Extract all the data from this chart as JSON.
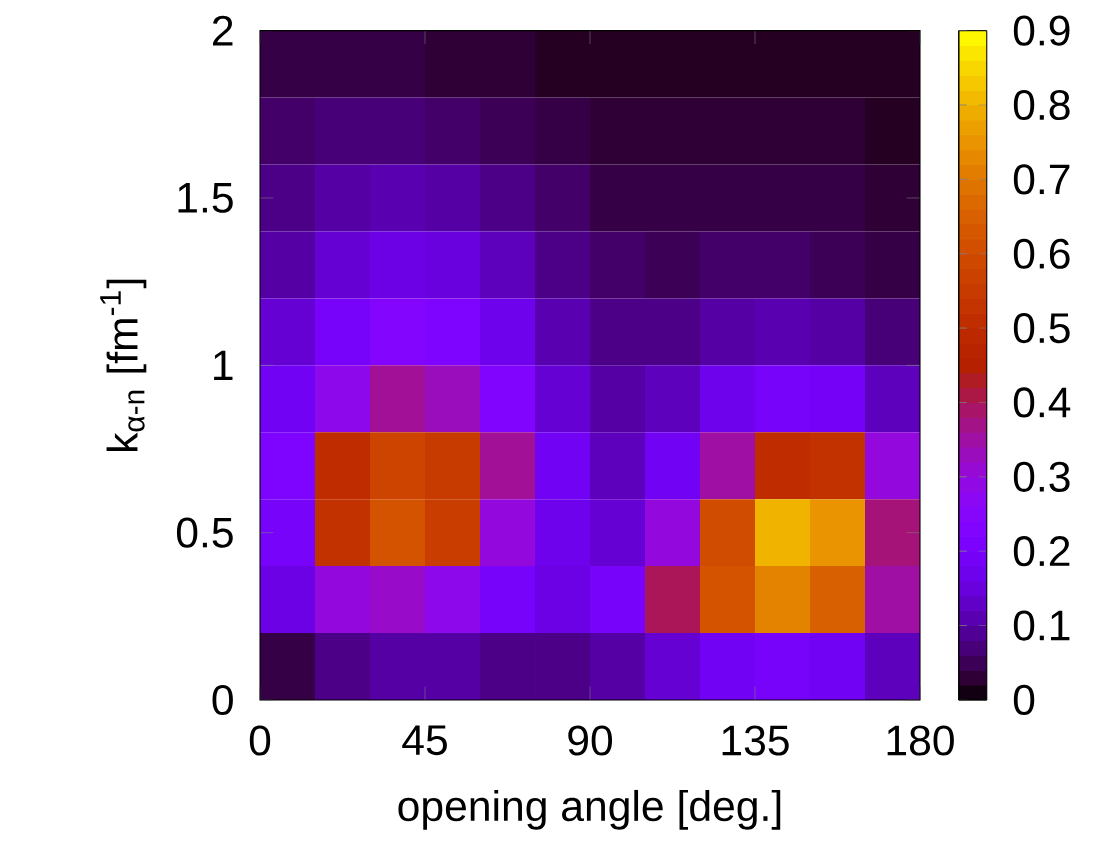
{
  "chart_data": {
    "type": "heatmap",
    "xlabel": "opening angle [deg.]",
    "ylabel": "k$_{α-n}$ [fm$^{-1}$]",
    "x": [
      7.5,
      22.5,
      37.5,
      52.5,
      67.5,
      82.5,
      97.5,
      112.5,
      127.5,
      142.5,
      157.5,
      172.5
    ],
    "y": [
      1.9,
      1.7,
      1.5,
      1.3,
      1.1,
      0.9,
      0.7,
      0.5,
      0.3,
      0.1
    ],
    "cells": [
      [
        0.04,
        0.04,
        0.04,
        0.03,
        0.03,
        0.02,
        0.02,
        0.02,
        0.02,
        0.02,
        0.02,
        0.02
      ],
      [
        0.06,
        0.07,
        0.07,
        0.06,
        0.05,
        0.04,
        0.03,
        0.03,
        0.03,
        0.03,
        0.03,
        0.02
      ],
      [
        0.08,
        0.1,
        0.11,
        0.1,
        0.08,
        0.06,
        0.04,
        0.04,
        0.04,
        0.04,
        0.04,
        0.03
      ],
      [
        0.1,
        0.14,
        0.16,
        0.15,
        0.12,
        0.08,
        0.06,
        0.05,
        0.06,
        0.06,
        0.05,
        0.04
      ],
      [
        0.14,
        0.2,
        0.24,
        0.22,
        0.17,
        0.11,
        0.08,
        0.08,
        0.1,
        0.11,
        0.1,
        0.07
      ],
      [
        0.18,
        0.28,
        0.36,
        0.33,
        0.23,
        0.14,
        0.1,
        0.12,
        0.17,
        0.2,
        0.19,
        0.12
      ],
      [
        0.22,
        0.5,
        0.58,
        0.55,
        0.36,
        0.18,
        0.12,
        0.18,
        0.35,
        0.5,
        0.52,
        0.3
      ],
      [
        0.2,
        0.52,
        0.62,
        0.56,
        0.3,
        0.17,
        0.14,
        0.3,
        0.6,
        0.8,
        0.75,
        0.38
      ],
      [
        0.16,
        0.3,
        0.32,
        0.28,
        0.2,
        0.16,
        0.2,
        0.4,
        0.62,
        0.72,
        0.65,
        0.35
      ],
      [
        0.04,
        0.08,
        0.1,
        0.1,
        0.08,
        0.08,
        0.1,
        0.14,
        0.18,
        0.2,
        0.18,
        0.12
      ]
    ],
    "xlim": [
      0,
      180
    ],
    "ylim": [
      0,
      2
    ],
    "xticks": [
      0,
      45,
      90,
      135,
      180
    ],
    "yticks": [
      0,
      0.5,
      1,
      1.5,
      2
    ],
    "clim": [
      0,
      0.9
    ],
    "cticks": [
      0,
      0.1,
      0.2,
      0.3,
      0.4,
      0.5,
      0.6,
      0.7,
      0.8,
      0.9
    ]
  }
}
